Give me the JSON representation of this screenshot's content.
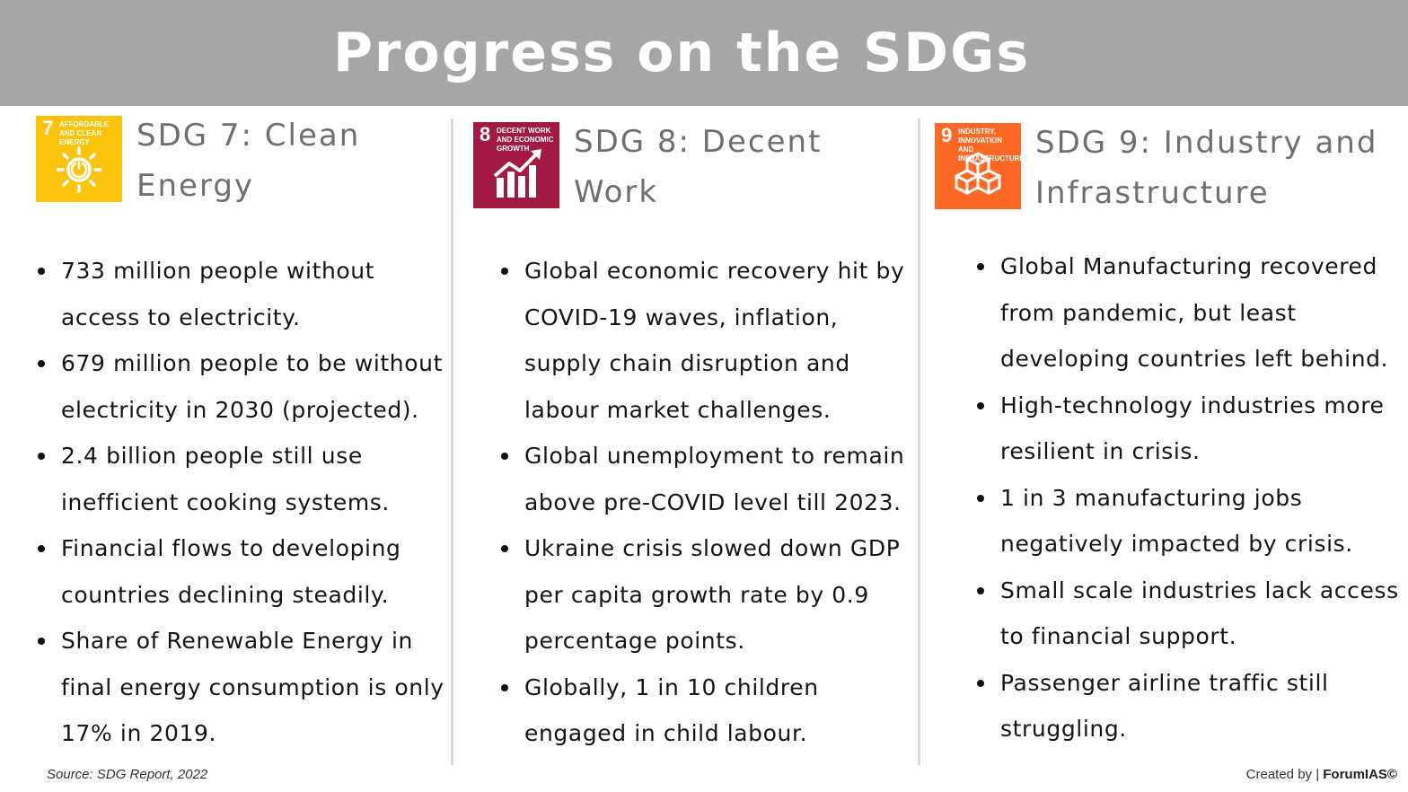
{
  "header": {
    "title": "Progress on the SDGs"
  },
  "columns": [
    {
      "badge": {
        "number": "7",
        "caption": "Affordable and Clean Energy",
        "icon": "sun-power-icon",
        "color": "#FCC30B"
      },
      "title_line1": "SDG 7: Clean",
      "title_line2": "Energy",
      "bullets": [
        "733 million people without access to electricity.",
        "679 million people to be without electricity in 2030 (projected).",
        "2.4 billion people still use inefficient cooking systems.",
        "Financial flows to developing countries declining steadily.",
        "Share of Renewable Energy in final energy consumption is only 17% in 2019."
      ]
    },
    {
      "badge": {
        "number": "8",
        "caption": "Decent Work and Economic Growth",
        "icon": "growth-chart-icon",
        "color": "#A21942"
      },
      "title_line1": "SDG 8: Decent",
      "title_line2": "Work",
      "bullets": [
        "Global economic recovery hit by COVID-19 waves, inflation, supply chain disruption and labour market challenges.",
        "Global unemployment to remain above pre-COVID level till 2023.",
        "Ukraine crisis slowed down GDP per capita growth rate by 0.9 percentage points.",
        "Globally, 1 in 10 children engaged in child labour."
      ]
    },
    {
      "badge": {
        "number": "9",
        "caption": "Industry, Innovation and Infrastructure",
        "icon": "cubes-icon",
        "color": "#FD6925"
      },
      "title_line1": "SDG 9: Industry and",
      "title_line2": "Infrastructure",
      "bullets": [
        "Global Manufacturing recovered from pandemic, but least developing countries left behind.",
        "High-technology industries more resilient in crisis.",
        "1 in 3 manufacturing jobs negatively impacted by crisis.",
        "Small scale industries lack access to financial support.",
        "Passenger airline traffic still struggling."
      ]
    }
  ],
  "footer": {
    "source": "Source: SDG Report, 2022",
    "credit_prefix": "Created by | ",
    "credit_brand": "ForumIAS©"
  }
}
